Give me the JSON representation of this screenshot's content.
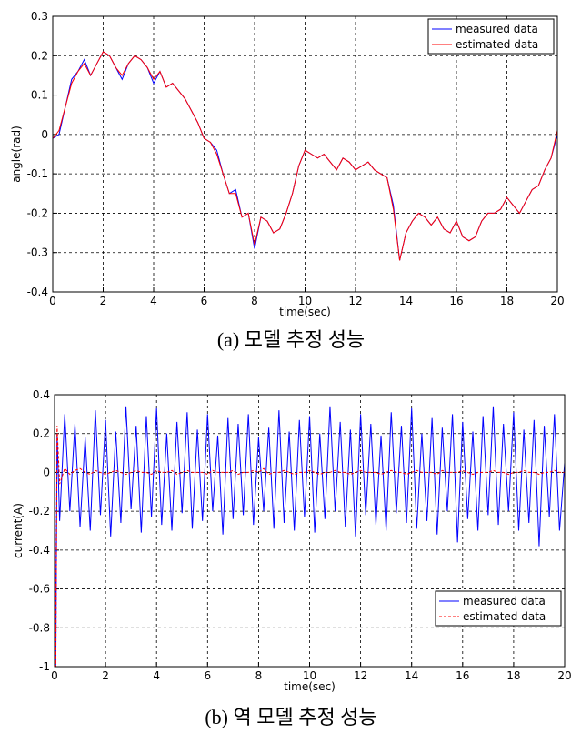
{
  "chart_data": [
    {
      "type": "line",
      "caption": "(a) 모델 추정 성능",
      "xlabel": "time(sec)",
      "ylabel": "angle(rad)",
      "xlim": [
        0,
        20
      ],
      "ylim": [
        -0.4,
        0.3
      ],
      "xticks": [
        0,
        2,
        4,
        6,
        8,
        10,
        12,
        14,
        16,
        18,
        20
      ],
      "yticks": [
        -0.4,
        -0.3,
        -0.2,
        -0.1,
        0,
        0.1,
        0.2,
        0.3
      ],
      "grid": true,
      "legend": "upper right",
      "x": [
        0,
        0.25,
        0.5,
        0.75,
        1,
        1.25,
        1.5,
        1.75,
        2,
        2.25,
        2.5,
        2.75,
        3,
        3.25,
        3.5,
        3.75,
        4,
        4.25,
        4.5,
        4.75,
        5,
        5.25,
        5.5,
        5.75,
        6,
        6.25,
        6.5,
        6.75,
        7,
        7.25,
        7.5,
        7.75,
        8,
        8.25,
        8.5,
        8.75,
        9,
        9.25,
        9.5,
        9.75,
        10,
        10.25,
        10.5,
        10.75,
        11,
        11.25,
        11.5,
        11.75,
        12,
        12.25,
        12.5,
        12.75,
        13,
        13.25,
        13.5,
        13.75,
        14,
        14.25,
        14.5,
        14.75,
        15,
        15.25,
        15.5,
        15.75,
        16,
        16.25,
        16.5,
        16.75,
        17,
        17.25,
        17.5,
        17.75,
        18,
        18.25,
        18.5,
        18.75,
        19,
        19.25,
        19.5,
        19.75,
        20
      ],
      "series": [
        {
          "name": "measured data",
          "color": "#0000ff",
          "dash": false,
          "values": [
            -0.01,
            0.0,
            0.07,
            0.14,
            0.16,
            0.19,
            0.15,
            0.18,
            0.21,
            0.2,
            0.17,
            0.14,
            0.18,
            0.2,
            0.19,
            0.17,
            0.13,
            0.16,
            0.12,
            0.13,
            0.11,
            0.09,
            0.06,
            0.03,
            -0.01,
            -0.02,
            -0.04,
            -0.1,
            -0.15,
            -0.14,
            -0.21,
            -0.2,
            -0.29,
            -0.21,
            -0.22,
            -0.25,
            -0.24,
            -0.2,
            -0.15,
            -0.08,
            -0.04,
            -0.05,
            -0.06,
            -0.05,
            -0.07,
            -0.09,
            -0.06,
            -0.07,
            -0.09,
            -0.08,
            -0.07,
            -0.09,
            -0.1,
            -0.11,
            -0.18,
            -0.32,
            -0.25,
            -0.22,
            -0.2,
            -0.21,
            -0.23,
            -0.21,
            -0.24,
            -0.25,
            -0.22,
            -0.26,
            -0.27,
            -0.26,
            -0.22,
            -0.2,
            -0.2,
            -0.19,
            -0.16,
            -0.18,
            -0.2,
            -0.17,
            -0.14,
            -0.13,
            -0.09,
            -0.06,
            0.0
          ]
        },
        {
          "name": "estimated data",
          "color": "#ff0000",
          "dash": false,
          "values": [
            -0.01,
            0.01,
            0.07,
            0.13,
            0.16,
            0.18,
            0.15,
            0.18,
            0.21,
            0.2,
            0.17,
            0.15,
            0.18,
            0.2,
            0.19,
            0.17,
            0.14,
            0.16,
            0.12,
            0.13,
            0.11,
            0.09,
            0.06,
            0.03,
            -0.01,
            -0.02,
            -0.05,
            -0.1,
            -0.15,
            -0.15,
            -0.21,
            -0.2,
            -0.28,
            -0.21,
            -0.22,
            -0.25,
            -0.24,
            -0.2,
            -0.15,
            -0.08,
            -0.04,
            -0.05,
            -0.06,
            -0.05,
            -0.07,
            -0.09,
            -0.06,
            -0.07,
            -0.09,
            -0.08,
            -0.07,
            -0.09,
            -0.1,
            -0.11,
            -0.19,
            -0.32,
            -0.25,
            -0.22,
            -0.2,
            -0.21,
            -0.23,
            -0.21,
            -0.24,
            -0.25,
            -0.22,
            -0.26,
            -0.27,
            -0.26,
            -0.22,
            -0.2,
            -0.2,
            -0.19,
            -0.16,
            -0.18,
            -0.2,
            -0.17,
            -0.14,
            -0.13,
            -0.09,
            -0.06,
            0.01
          ]
        }
      ]
    },
    {
      "type": "line",
      "caption": "(b) 역 모델 추정 성능",
      "xlabel": "time(sec)",
      "ylabel": "current(A)",
      "xlim": [
        0,
        20
      ],
      "ylim": [
        -1,
        0.4
      ],
      "xticks": [
        0,
        2,
        4,
        6,
        8,
        10,
        12,
        14,
        16,
        18,
        20
      ],
      "yticks": [
        -1,
        -0.8,
        -0.6,
        -0.4,
        -0.2,
        0,
        0.2,
        0.4
      ],
      "grid": true,
      "legend": "lower right",
      "x": [
        0,
        0.05,
        0.1,
        0.2,
        0.4,
        0.6,
        0.8,
        1,
        1.2,
        1.4,
        1.6,
        1.8,
        2,
        2.2,
        2.4,
        2.6,
        2.8,
        3,
        3.2,
        3.4,
        3.6,
        3.8,
        4,
        4.2,
        4.4,
        4.6,
        4.8,
        5,
        5.2,
        5.4,
        5.6,
        5.8,
        6,
        6.2,
        6.4,
        6.6,
        6.8,
        7,
        7.2,
        7.4,
        7.6,
        7.8,
        8,
        8.2,
        8.4,
        8.6,
        8.8,
        9,
        9.2,
        9.4,
        9.6,
        9.8,
        10,
        10.2,
        10.4,
        10.6,
        10.8,
        11,
        11.2,
        11.4,
        11.6,
        11.8,
        12,
        12.2,
        12.4,
        12.6,
        12.8,
        13,
        13.2,
        13.4,
        13.6,
        13.8,
        14,
        14.2,
        14.4,
        14.6,
        14.8,
        15,
        15.2,
        15.4,
        15.6,
        15.8,
        16,
        16.2,
        16.4,
        16.6,
        16.8,
        17,
        17.2,
        17.4,
        17.6,
        17.8,
        18,
        18.2,
        18.4,
        18.6,
        18.8,
        19,
        19.2,
        19.4,
        19.6,
        19.8,
        20
      ],
      "series": [
        {
          "name": "measured data",
          "color": "#0000ff",
          "dash": false,
          "values": [
            0.28,
            -1.0,
            0.2,
            -0.25,
            0.3,
            -0.2,
            0.25,
            -0.28,
            0.18,
            -0.3,
            0.32,
            -0.22,
            0.27,
            -0.33,
            0.21,
            -0.26,
            0.34,
            -0.19,
            0.24,
            -0.31,
            0.29,
            -0.23,
            0.33,
            -0.27,
            0.2,
            -0.3,
            0.26,
            -0.21,
            0.31,
            -0.29,
            0.22,
            -0.25,
            0.3,
            -0.2,
            0.19,
            -0.32,
            0.28,
            -0.24,
            0.25,
            -0.22,
            0.3,
            -0.27,
            0.18,
            -0.2,
            0.23,
            -0.29,
            0.32,
            -0.26,
            0.21,
            -0.3,
            0.27,
            -0.23,
            0.29,
            -0.31,
            0.2,
            -0.24,
            0.34,
            -0.2,
            0.26,
            -0.28,
            0.22,
            -0.33,
            0.3,
            -0.22,
            0.25,
            -0.27,
            0.19,
            -0.3,
            0.31,
            -0.21,
            0.24,
            -0.26,
            0.33,
            -0.29,
            0.2,
            -0.25,
            0.28,
            -0.32,
            0.23,
            -0.2,
            0.3,
            -0.36,
            0.26,
            -0.24,
            0.21,
            -0.3,
            0.29,
            -0.22,
            0.34,
            -0.27,
            0.25,
            -0.2,
            0.31,
            -0.3,
            0.22,
            -0.26,
            0.27,
            -0.38,
            0.24,
            -0.23,
            0.3,
            -0.3,
            0.05
          ]
        },
        {
          "name": "estimated data",
          "color": "#ff0000",
          "dash": true,
          "values": [
            0.25,
            -1.0,
            0.24,
            -0.06,
            0.02,
            -0.01,
            0.01,
            0.02,
            0.0,
            -0.01,
            0.01,
            0.0,
            -0.01,
            0.0,
            0.01,
            0.0,
            -0.01,
            0.0,
            0.01,
            0.0,
            0.0,
            -0.01,
            0.01,
            0.0,
            0.0,
            0.01,
            -0.01,
            0.0,
            0.01,
            0.0,
            0.0,
            0.0,
            -0.01,
            0.01,
            0.0,
            0.0,
            0.0,
            0.01,
            -0.01,
            0.0,
            0.0,
            0.01,
            0.0,
            0.02,
            -0.01,
            0.0,
            0.0,
            0.01,
            0.0,
            -0.01,
            0.0,
            0.0,
            0.01,
            0.0,
            -0.01,
            0.0,
            0.0,
            0.01,
            0.0,
            0.0,
            -0.01,
            0.0,
            0.01,
            0.0,
            0.0,
            0.0,
            -0.01,
            0.0,
            0.01,
            0.0,
            0.0,
            -0.01,
            0.0,
            0.01,
            0.0,
            0.0,
            0.0,
            -0.01,
            0.01,
            0.0,
            0.0,
            0.0,
            0.01,
            0.0,
            -0.01,
            0.0,
            0.0,
            0.0,
            0.01,
            0.0,
            0.0,
            -0.01,
            0.0,
            0.0,
            0.01,
            0.0,
            0.0,
            -0.01,
            0.0,
            0.0,
            0.01,
            0.0,
            0.0
          ]
        }
      ]
    }
  ]
}
